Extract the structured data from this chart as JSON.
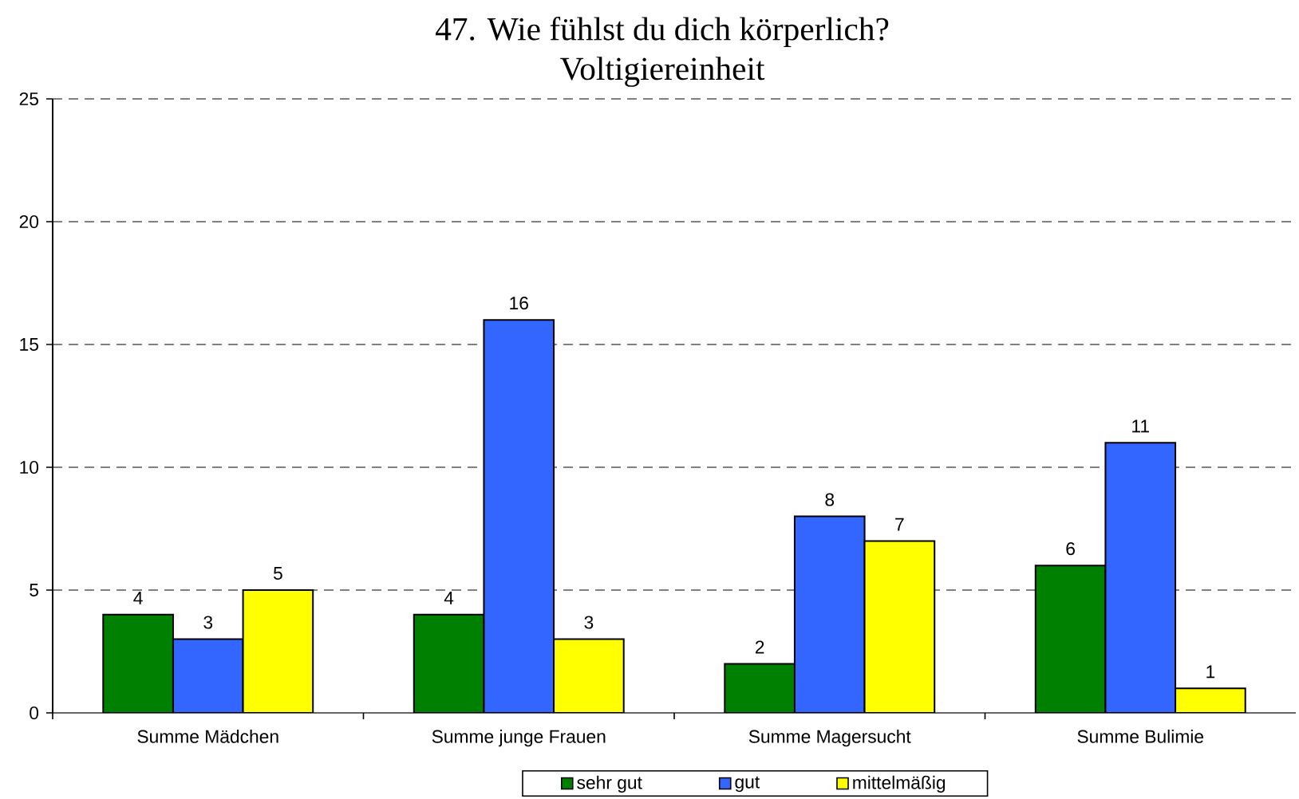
{
  "chart_data": {
    "type": "bar",
    "title": "47. Wie fühlst du dich körperlich?",
    "subtitle": "Voltigiereinheit",
    "categories": [
      "Summe Mädchen",
      "Summe junge Frauen",
      "Summe Magersucht",
      "Summe Bulimie"
    ],
    "series": [
      {
        "name": "sehr gut",
        "color": "#008000",
        "values": [
          4,
          4,
          2,
          6
        ]
      },
      {
        "name": "gut",
        "color": "#3366ff",
        "values": [
          3,
          16,
          8,
          11
        ]
      },
      {
        "name": "mittelmäßig",
        "color": "#ffff00",
        "values": [
          5,
          3,
          7,
          1
        ]
      }
    ],
    "ylim": [
      0,
      25
    ],
    "yticks": [
      0,
      5,
      10,
      15,
      20,
      25
    ],
    "grid": "y",
    "legend": "bottom",
    "data_labels": true
  }
}
